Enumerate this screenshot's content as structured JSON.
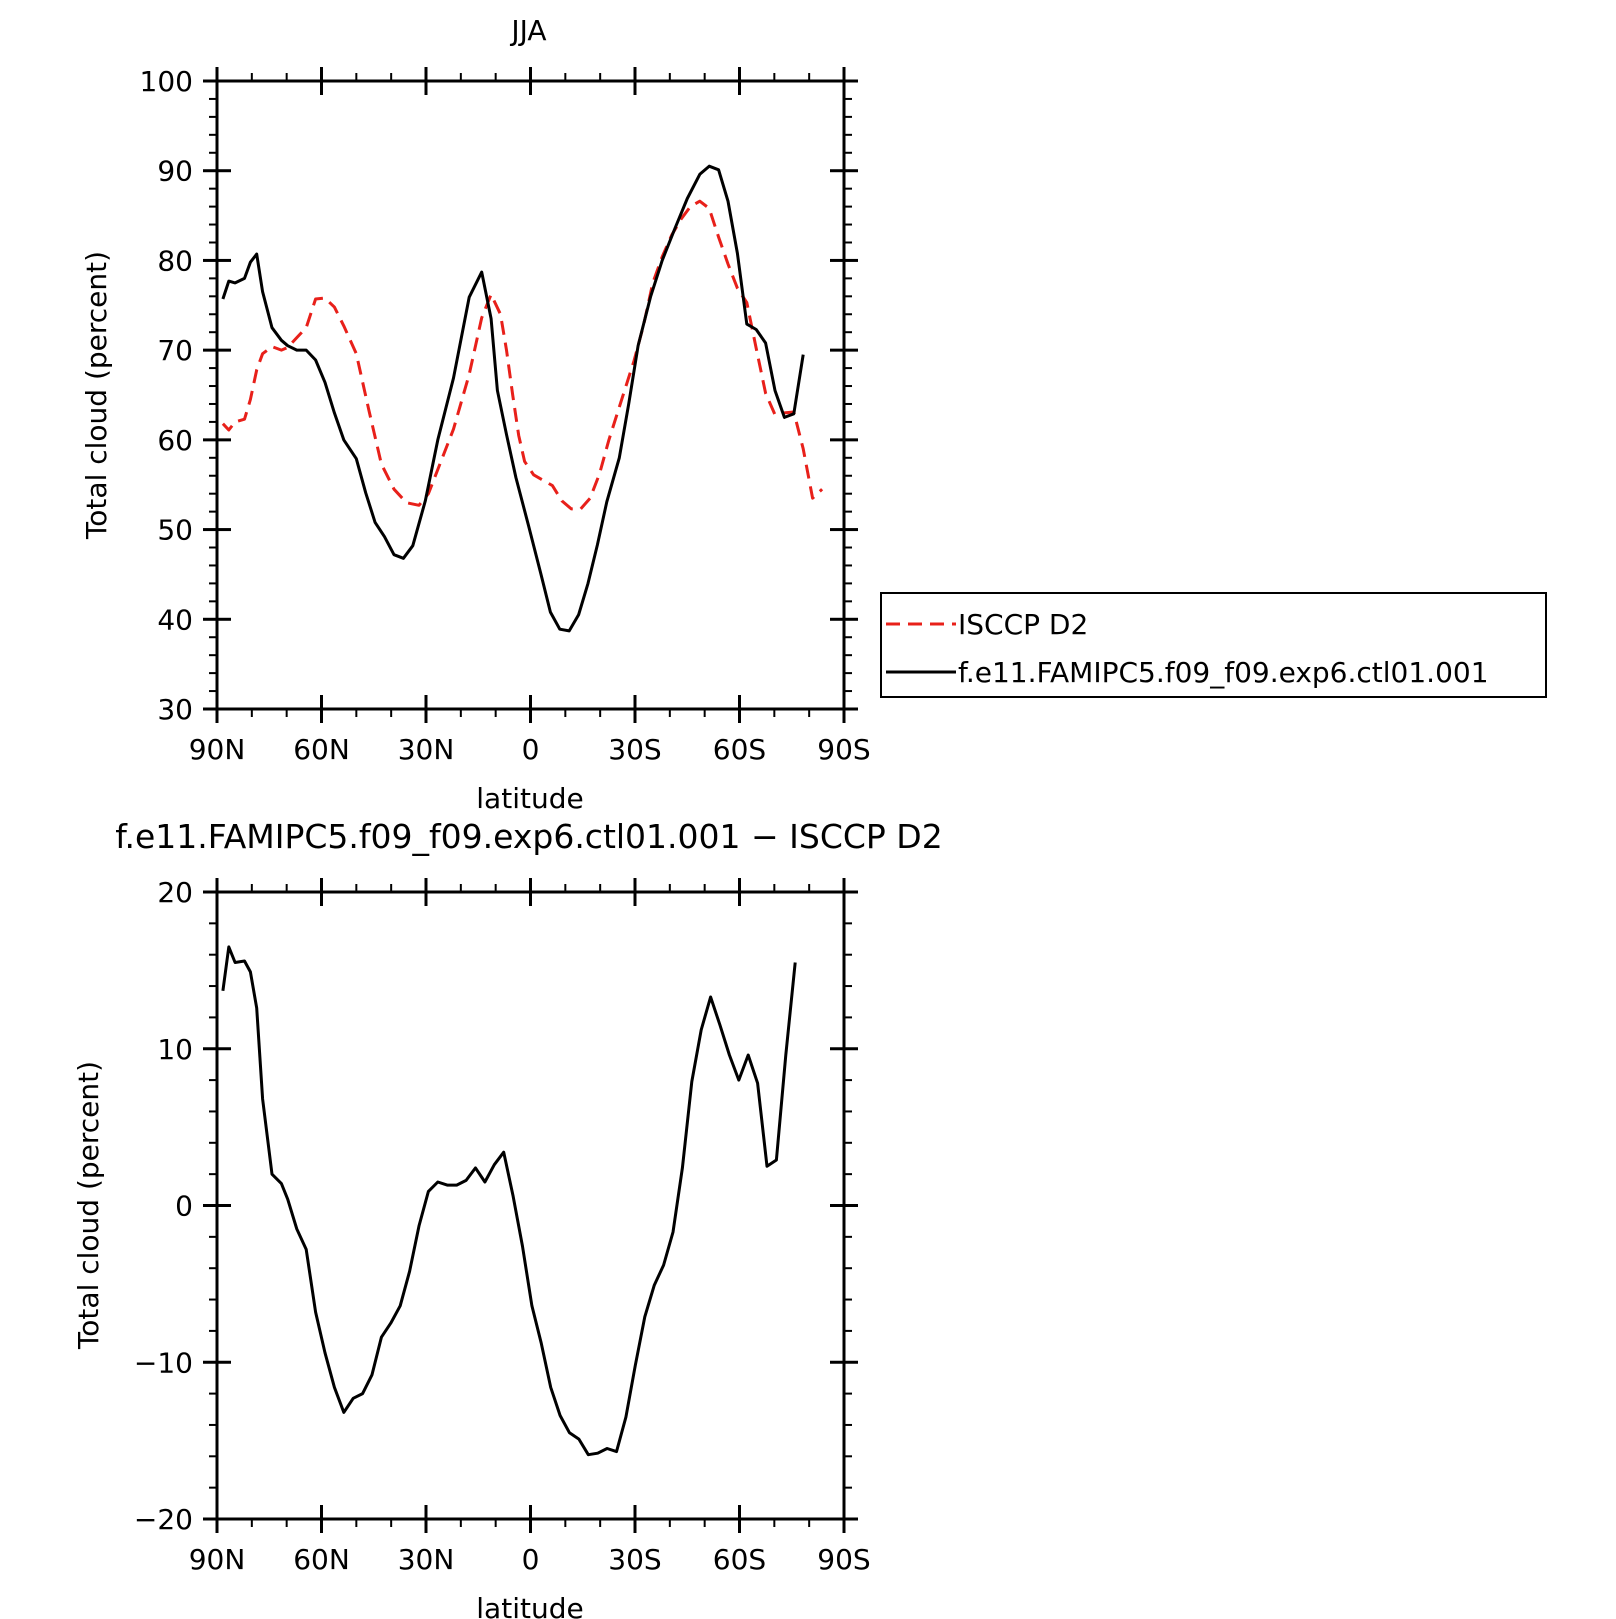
{
  "chart_data": [
    {
      "type": "line",
      "title": "JJA",
      "xlabel": "latitude",
      "ylabel": "Total cloud (percent)",
      "xlim": [
        90,
        -90
      ],
      "ylim": [
        30,
        100
      ],
      "xticks": [
        90,
        60,
        30,
        0,
        -30,
        -60,
        -90
      ],
      "xtick_labels": [
        "90N",
        "60N",
        "30N",
        "0",
        "30S",
        "60S",
        "90S"
      ],
      "yticks": [
        30,
        40,
        50,
        60,
        70,
        80,
        90,
        100
      ],
      "ytick_labels": [
        "30",
        "40",
        "50",
        "60",
        "70",
        "80",
        "90",
        "100"
      ],
      "legend_position": "right",
      "series": [
        {
          "name": "ISCCP D2",
          "color": "#e8201a",
          "style": "dashed",
          "points": [
            [
              88.3,
              61.8
            ],
            [
              86.6,
              61.1
            ],
            [
              84.8,
              62.0
            ],
            [
              82.1,
              62.3
            ],
            [
              80.4,
              64.5
            ],
            [
              78.6,
              67.8
            ],
            [
              76.9,
              69.6
            ],
            [
              74.2,
              70.4
            ],
            [
              71.5,
              70.0
            ],
            [
              69.7,
              70.3
            ],
            [
              67.1,
              71.4
            ],
            [
              64.4,
              72.5
            ],
            [
              61.7,
              75.7
            ],
            [
              59.0,
              75.8
            ],
            [
              56.3,
              74.8
            ],
            [
              53.6,
              72.7
            ],
            [
              50.0,
              69.6
            ],
            [
              46.4,
              63.3
            ],
            [
              42.8,
              57.3
            ],
            [
              39.2,
              54.5
            ],
            [
              35.6,
              53.0
            ],
            [
              32.0,
              52.7
            ],
            [
              29.3,
              54.0
            ],
            [
              26.6,
              56.7
            ],
            [
              22.1,
              61.2
            ],
            [
              17.6,
              67.3
            ],
            [
              14.0,
              73.6
            ],
            [
              11.3,
              76.2
            ],
            [
              8.6,
              74.0
            ],
            [
              6.9,
              70.0
            ],
            [
              5.1,
              65.0
            ],
            [
              3.4,
              60.5
            ],
            [
              1.7,
              57.6
            ],
            [
              -0.9,
              56.1
            ],
            [
              -3.6,
              55.5
            ],
            [
              -6.3,
              54.9
            ],
            [
              -9.0,
              53.2
            ],
            [
              -11.7,
              52.3
            ],
            [
              -14.4,
              52.3
            ],
            [
              -17.1,
              53.5
            ],
            [
              -19.8,
              56.2
            ],
            [
              -22.5,
              60.0
            ],
            [
              -26.1,
              64.4
            ],
            [
              -29.7,
              68.8
            ],
            [
              -32.4,
              72.7
            ],
            [
              -35.1,
              77.5
            ],
            [
              -37.8,
              80.4
            ],
            [
              -40.5,
              82.8
            ],
            [
              -43.2,
              84.6
            ],
            [
              -45.9,
              86.0
            ],
            [
              -48.6,
              86.6
            ],
            [
              -51.3,
              85.8
            ],
            [
              -54.0,
              82.6
            ],
            [
              -56.7,
              79.6
            ],
            [
              -59.4,
              76.9
            ],
            [
              -62.1,
              75.3
            ],
            [
              -64.8,
              70.2
            ],
            [
              -67.5,
              65.2
            ],
            [
              -70.2,
              62.8
            ],
            [
              -72.9,
              63.0
            ],
            [
              -75.6,
              63.1
            ],
            [
              -78.3,
              59.0
            ],
            [
              -81.0,
              53.5
            ],
            [
              -83.7,
              54.5
            ]
          ]
        },
        {
          "name": "f.e11.FAMIPC5.f09_f09.exp6.ctl01.001",
          "color": "#000000",
          "style": "solid",
          "points": [
            [
              88.3,
              75.7
            ],
            [
              86.6,
              77.7
            ],
            [
              84.8,
              77.5
            ],
            [
              82.1,
              78.0
            ],
            [
              80.4,
              79.8
            ],
            [
              78.6,
              80.7
            ],
            [
              76.9,
              76.5
            ],
            [
              74.2,
              72.5
            ],
            [
              71.5,
              71.1
            ],
            [
              69.7,
              70.5
            ],
            [
              67.1,
              70.0
            ],
            [
              64.4,
              70.0
            ],
            [
              61.7,
              68.9
            ],
            [
              59.0,
              66.4
            ],
            [
              56.3,
              63.0
            ],
            [
              53.6,
              60.0
            ],
            [
              50.0,
              57.9
            ],
            [
              47.3,
              54.1
            ],
            [
              44.6,
              50.8
            ],
            [
              41.9,
              49.2
            ],
            [
              39.2,
              47.2
            ],
            [
              36.5,
              46.8
            ],
            [
              33.8,
              48.2
            ],
            [
              30.2,
              53.2
            ],
            [
              26.6,
              60.0
            ],
            [
              22.1,
              66.9
            ],
            [
              17.6,
              75.9
            ],
            [
              14.0,
              78.7
            ],
            [
              11.3,
              73.5
            ],
            [
              9.5,
              65.5
            ],
            [
              6.9,
              60.6
            ],
            [
              4.2,
              55.8
            ],
            [
              0.6,
              50.5
            ],
            [
              -3.0,
              45.0
            ],
            [
              -5.7,
              40.8
            ],
            [
              -8.4,
              38.9
            ],
            [
              -11.1,
              38.7
            ],
            [
              -13.8,
              40.5
            ],
            [
              -16.5,
              44.0
            ],
            [
              -19.2,
              48.3
            ],
            [
              -21.9,
              53.1
            ],
            [
              -25.5,
              58.0
            ],
            [
              -28.2,
              64.0
            ],
            [
              -30.9,
              70.5
            ],
            [
              -34.5,
              76.0
            ],
            [
              -37.8,
              80.0
            ],
            [
              -41.4,
              83.5
            ],
            [
              -45.0,
              86.9
            ],
            [
              -48.6,
              89.6
            ],
            [
              -51.3,
              90.5
            ],
            [
              -54.0,
              90.1
            ],
            [
              -56.7,
              86.6
            ],
            [
              -59.4,
              80.8
            ],
            [
              -62.1,
              72.9
            ],
            [
              -64.8,
              72.3
            ],
            [
              -67.5,
              70.8
            ],
            [
              -70.2,
              65.5
            ],
            [
              -72.9,
              62.5
            ],
            [
              -75.6,
              62.9
            ],
            [
              -78.3,
              69.5
            ]
          ]
        }
      ]
    },
    {
      "type": "line",
      "title": "f.e11.FAMIPC5.f09_f09.exp6.ctl01.001 − ISCCP D2",
      "xlabel": "latitude",
      "ylabel": "Total cloud (percent)",
      "xlim": [
        90,
        -90
      ],
      "ylim": [
        -20,
        20
      ],
      "xticks": [
        90,
        60,
        30,
        0,
        -30,
        -60,
        -90
      ],
      "xtick_labels": [
        "90N",
        "60N",
        "30N",
        "0",
        "30S",
        "60S",
        "90S"
      ],
      "yticks": [
        -20,
        -10,
        0,
        10,
        20
      ],
      "ytick_labels": [
        "−20",
        "−10",
        "0",
        "10",
        "20"
      ],
      "series": [
        {
          "color": "#000000",
          "style": "solid",
          "points": [
            [
              88.3,
              13.7
            ],
            [
              86.6,
              16.5
            ],
            [
              84.8,
              15.5
            ],
            [
              82.1,
              15.6
            ],
            [
              80.4,
              14.9
            ],
            [
              78.6,
              12.6
            ],
            [
              76.9,
              6.8
            ],
            [
              74.2,
              2.0
            ],
            [
              71.5,
              1.4
            ],
            [
              69.7,
              0.4
            ],
            [
              67.1,
              -1.5
            ],
            [
              64.4,
              -2.8
            ],
            [
              61.7,
              -6.8
            ],
            [
              59.0,
              -9.4
            ],
            [
              56.3,
              -11.6
            ],
            [
              53.6,
              -13.2
            ],
            [
              50.9,
              -12.3
            ],
            [
              48.2,
              -12.0
            ],
            [
              45.5,
              -10.8
            ],
            [
              42.8,
              -8.4
            ],
            [
              40.1,
              -7.5
            ],
            [
              37.4,
              -6.4
            ],
            [
              34.7,
              -4.2
            ],
            [
              32.0,
              -1.3
            ],
            [
              29.3,
              0.9
            ],
            [
              26.6,
              1.5
            ],
            [
              23.9,
              1.3
            ],
            [
              21.2,
              1.3
            ],
            [
              18.5,
              1.6
            ],
            [
              15.8,
              2.4
            ],
            [
              13.1,
              1.5
            ],
            [
              10.4,
              2.6
            ],
            [
              7.7,
              3.4
            ],
            [
              5.0,
              0.6
            ],
            [
              2.3,
              -2.6
            ],
            [
              -0.4,
              -6.4
            ],
            [
              -3.1,
              -8.8
            ],
            [
              -5.8,
              -11.6
            ],
            [
              -8.5,
              -13.4
            ],
            [
              -11.2,
              -14.5
            ],
            [
              -13.9,
              -14.9
            ],
            [
              -16.6,
              -15.9
            ],
            [
              -19.3,
              -15.8
            ],
            [
              -22.0,
              -15.5
            ],
            [
              -24.7,
              -15.7
            ],
            [
              -27.4,
              -13.5
            ],
            [
              -30.1,
              -10.2
            ],
            [
              -32.8,
              -7.1
            ],
            [
              -35.5,
              -5.1
            ],
            [
              -38.2,
              -3.8
            ],
            [
              -40.9,
              -1.7
            ],
            [
              -43.6,
              2.4
            ],
            [
              -46.3,
              7.9
            ],
            [
              -49.0,
              11.2
            ],
            [
              -51.7,
              13.3
            ],
            [
              -54.4,
              11.5
            ],
            [
              -57.1,
              9.6
            ],
            [
              -59.8,
              8.0
            ],
            [
              -62.5,
              9.6
            ],
            [
              -65.2,
              7.8
            ],
            [
              -67.9,
              2.5
            ],
            [
              -70.6,
              2.9
            ],
            [
              -73.3,
              9.6
            ],
            [
              -76.0,
              15.5
            ]
          ]
        }
      ]
    }
  ]
}
